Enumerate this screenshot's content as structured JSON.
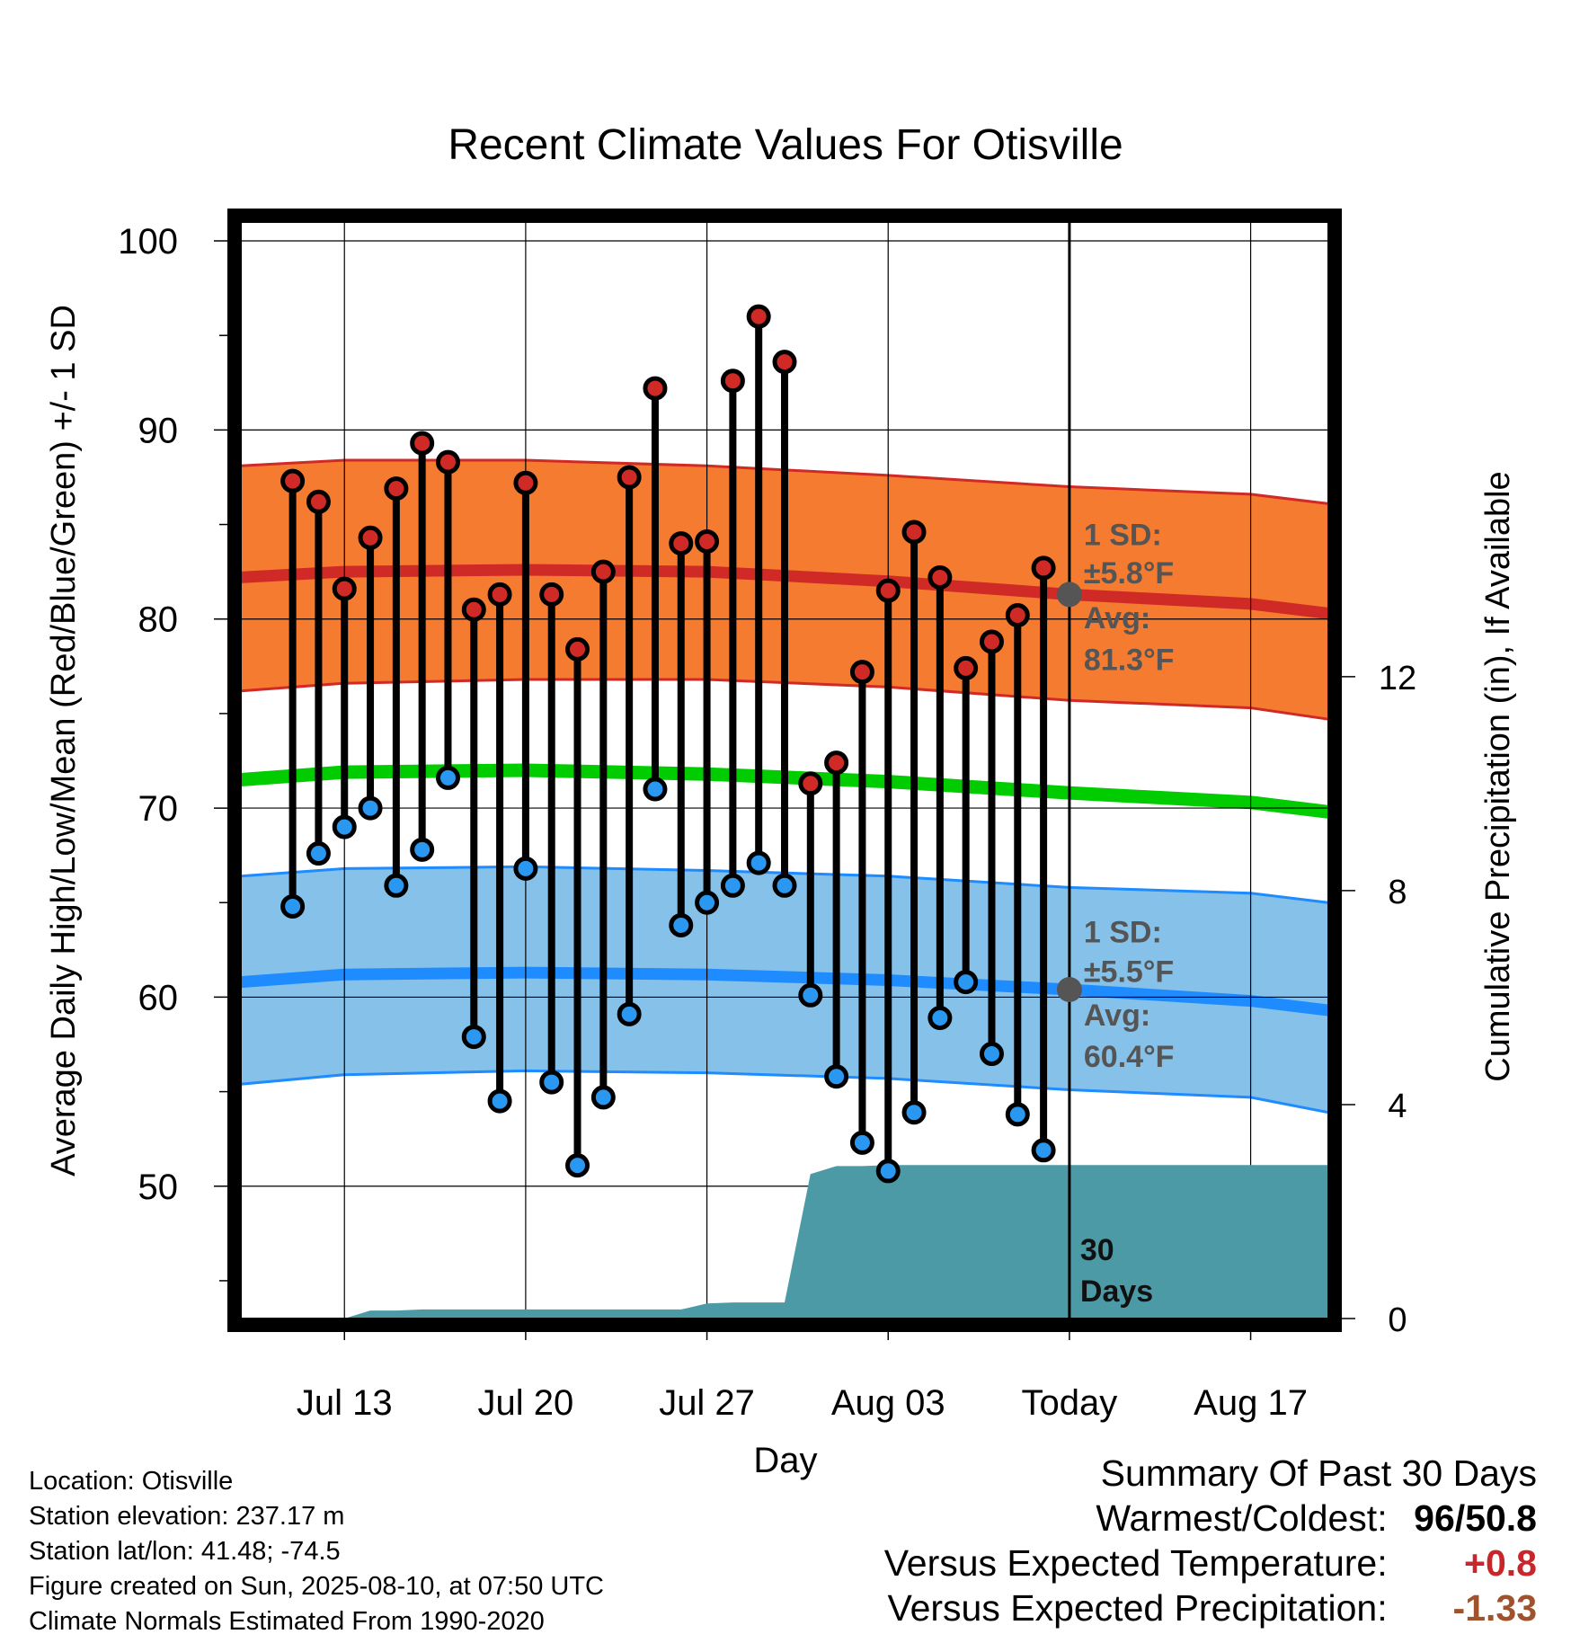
{
  "chart_data": {
    "type": "line",
    "title": "Recent Climate Values For Otisville",
    "xlabel": "Day",
    "ylabel": "Average Daily High/Low/Mean (Red/Blue/Green) +/- 1 SD",
    "y2label": "Cumulative Precipitation (in), If Available",
    "x_range": [
      "2025-07-09",
      "2025-08-20"
    ],
    "ylim": [
      43,
      101
    ],
    "y2lim": [
      0,
      20.5
    ],
    "yticks": [
      "100",
      "90",
      "80",
      "70",
      "60",
      "50"
    ],
    "y2ticks": [
      "0",
      "4",
      "8",
      "12"
    ],
    "xticks": [
      {
        "date": "2025-07-13",
        "label": "Jul 13"
      },
      {
        "date": "2025-07-20",
        "label": "Jul 20"
      },
      {
        "date": "2025-07-27",
        "label": "Jul 27"
      },
      {
        "date": "2025-08-03",
        "label": "Aug 03"
      },
      {
        "date": "2025-08-10",
        "label": "Today"
      },
      {
        "date": "2025-08-17",
        "label": "Aug 17"
      }
    ],
    "grid": true,
    "today": "2025-08-10",
    "days": [
      "2025-07-11",
      "2025-07-12",
      "2025-07-13",
      "2025-07-14",
      "2025-07-15",
      "2025-07-16",
      "2025-07-17",
      "2025-07-18",
      "2025-07-19",
      "2025-07-20",
      "2025-07-21",
      "2025-07-22",
      "2025-07-23",
      "2025-07-24",
      "2025-07-25",
      "2025-07-26",
      "2025-07-27",
      "2025-07-28",
      "2025-07-29",
      "2025-07-30",
      "2025-07-31",
      "2025-08-01",
      "2025-08-02",
      "2025-08-03",
      "2025-08-04",
      "2025-08-05",
      "2025-08-06",
      "2025-08-07",
      "2025-08-08",
      "2025-08-09"
    ],
    "highs": [
      87.3,
      86.2,
      81.6,
      84.3,
      86.9,
      89.3,
      88.3,
      80.5,
      81.3,
      87.2,
      81.3,
      78.4,
      82.5,
      87.5,
      92.2,
      84.0,
      84.1,
      92.6,
      96.0,
      93.6,
      71.3,
      72.4,
      77.2,
      81.5,
      84.6,
      82.2,
      77.4,
      78.8,
      80.2,
      82.7
    ],
    "lows": [
      64.8,
      67.6,
      69.0,
      70.0,
      65.9,
      67.8,
      71.6,
      57.9,
      54.5,
      66.8,
      55.5,
      51.1,
      54.7,
      59.1,
      71.0,
      63.8,
      65.0,
      65.9,
      67.1,
      65.9,
      60.1,
      55.8,
      52.3,
      50.8,
      53.9,
      58.9,
      60.8,
      57.0,
      53.8,
      51.9
    ],
    "normal_high": {
      "x": [
        "2025-07-09",
        "2025-07-13",
        "2025-07-20",
        "2025-07-27",
        "2025-08-03",
        "2025-08-10",
        "2025-08-17",
        "2025-08-20"
      ],
      "avg": [
        82.2,
        82.5,
        82.6,
        82.5,
        82.0,
        81.3,
        80.8,
        80.3
      ],
      "upper": [
        88.1,
        88.4,
        88.4,
        88.1,
        87.6,
        87.0,
        86.6,
        86.1
      ],
      "lower": [
        76.2,
        76.6,
        76.8,
        76.8,
        76.4,
        75.7,
        75.3,
        74.7
      ]
    },
    "normal_low": {
      "x": [
        "2025-07-09",
        "2025-07-13",
        "2025-07-20",
        "2025-07-27",
        "2025-08-03",
        "2025-08-10",
        "2025-08-17",
        "2025-08-20"
      ],
      "avg": [
        60.8,
        61.2,
        61.3,
        61.2,
        60.9,
        60.4,
        59.8,
        59.3
      ],
      "upper": [
        66.4,
        66.8,
        66.9,
        66.7,
        66.4,
        65.8,
        65.5,
        65.0
      ],
      "lower": [
        55.4,
        55.9,
        56.1,
        56.0,
        55.7,
        55.1,
        54.7,
        53.9
      ]
    },
    "normal_mean": {
      "x": [
        "2025-07-09",
        "2025-07-13",
        "2025-07-20",
        "2025-07-27",
        "2025-08-03",
        "2025-08-10",
        "2025-08-17",
        "2025-08-20"
      ],
      "avg": [
        71.5,
        71.9,
        72.0,
        71.8,
        71.4,
        70.8,
        70.3,
        69.8
      ]
    },
    "precip": {
      "x": [
        "2025-07-09",
        "2025-07-10",
        "2025-07-11",
        "2025-07-12",
        "2025-07-13",
        "2025-07-14",
        "2025-07-15",
        "2025-07-16",
        "2025-07-20",
        "2025-07-25",
        "2025-07-26",
        "2025-07-27",
        "2025-07-28",
        "2025-07-29",
        "2025-07-30",
        "2025-07-31",
        "2025-08-01",
        "2025-08-02",
        "2025-08-03",
        "2025-08-10",
        "2025-08-20"
      ],
      "values": [
        0,
        0,
        0,
        0,
        0,
        0.15,
        0.15,
        0.17,
        0.17,
        0.17,
        0.17,
        0.28,
        0.3,
        0.3,
        0.3,
        2.7,
        2.85,
        2.85,
        2.87,
        2.87,
        2.87
      ]
    },
    "annotations": {
      "high_sd_line1": "1 SD:",
      "high_sd_line2": "±5.8°F",
      "high_avg_line1": "Avg:",
      "high_avg_line2": "81.3°F",
      "low_sd_line1": "1 SD:",
      "low_sd_line2": "±5.5°F",
      "low_avg_line1": "Avg:",
      "low_avg_line2": "60.4°F",
      "days_line1": "30",
      "days_line2": "Days"
    },
    "colors": {
      "high_band": "#f47b2f",
      "high_line": "#d02a26",
      "low_band": "#85c1e8",
      "low_line": "#1e8bff",
      "mean_line": "#00cc00",
      "precip": "#4b9aa6",
      "high_marker": "#d02a26",
      "low_marker": "#2a97f0",
      "annotation_text": "#555555",
      "today_marker": "#555555"
    }
  },
  "station_info": {
    "location": "Location: Otisville",
    "elevation": "Station elevation: 237.17 m",
    "latlon": "Station lat/lon: 41.48; -74.5",
    "created": "Figure created on Sun, 2025-08-10, at 07:50 UTC",
    "normals": "Climate Normals Estimated From 1990-2020"
  },
  "summary": {
    "title": "Summary Of Past 30 Days",
    "warmest_coldest_label": "Warmest/Coldest:",
    "warmest_value": "96",
    "slash": "/",
    "coldest_value": "50.8",
    "temp_label": "Versus Expected Temperature:",
    "temp_value": "+0.8",
    "precip_label": "Versus Expected Precipitation:",
    "precip_value": "-1.33",
    "temp_color": "#c8262b",
    "precip_color": "#a0522d"
  }
}
